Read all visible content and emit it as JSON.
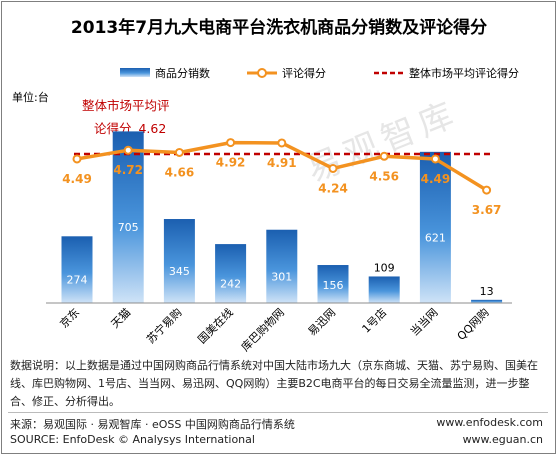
{
  "chart_data": {
    "type": "bar",
    "title": "2013年7月九大电商平台洗衣机商品分销数及评论得分",
    "ylabel": "单位:台",
    "categories": [
      "京东",
      "天猫",
      "苏宁易购",
      "国美在线",
      "库巴购物网",
      "易迅网",
      "1号店",
      "当当网",
      "QQ网购"
    ],
    "series": [
      {
        "name": "商品分销数",
        "kind": "bar",
        "color": "#2e79c8",
        "values": [
          274,
          705,
          345,
          242,
          301,
          156,
          109,
          621,
          13
        ]
      },
      {
        "name": "评论得分",
        "kind": "line",
        "color": "#f39220",
        "values": [
          4.49,
          4.72,
          4.66,
          4.92,
          4.91,
          4.24,
          4.56,
          4.49,
          3.67
        ]
      },
      {
        "name": "整体市场平均评论得分",
        "kind": "dashed-line",
        "color": "#c00000",
        "value": 4.62
      }
    ],
    "annotation": {
      "line1": "整体市场平均评",
      "line2": "论得分,",
      "value": "4.62"
    },
    "watermark": "易观智库"
  },
  "legend": {
    "bar_label": "商品分销数",
    "line_label": "评论得分",
    "avg_label": "整体市场平均评论得分"
  },
  "note": "数据说明：以上数据是通过中国网购商品行情系统对中国大陆市场九大（京东商城、天猫、苏宁易购、国美在线、库巴购物网、1号店、当当网、易迅网、QQ网购）主要B2C电商平台的每日交易全流量监测，进一步整合、修正、分析得出。",
  "footer": {
    "source_cn": "来源：易观国际 · 易观智库 · eOSS 中国网购商品行情系统",
    "source_en": "SOURCE: EnfoDesk © Analysys International",
    "url1": "www.enfodesk.com",
    "url2": "www.eguan.cn"
  }
}
